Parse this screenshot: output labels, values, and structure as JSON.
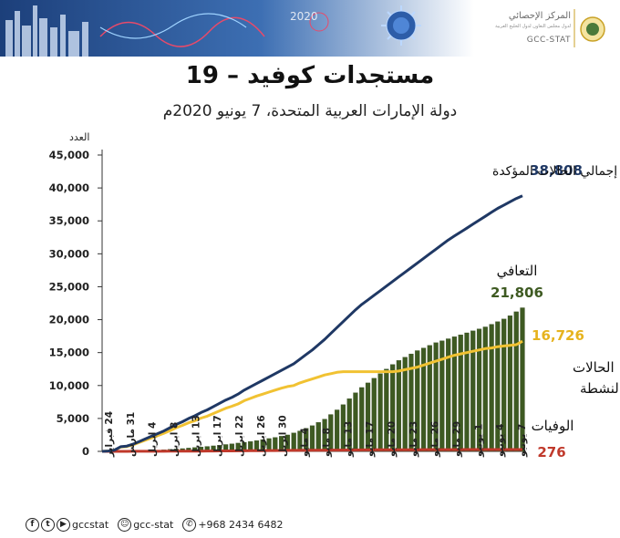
{
  "header": {
    "logo_arabic": "المركز الإحصائي",
    "logo_subtitle": "لدول مجلس التعاون لدول الخليج العربية",
    "logo_english": "GCC-STAT",
    "banner_digits": "2020"
  },
  "title": "مستجدات كوفيد – 19",
  "subtitle": "دولة الإمارات العربية المتحدة، 7 يونيو 2020م",
  "footer": {
    "handle": "gccstat",
    "snap": "gcc-stat",
    "phone": "+968 2434 6482"
  },
  "chart_data": {
    "type": "bar",
    "ylabel": "العدد",
    "ylim": [
      0,
      45000
    ],
    "yticks": [
      "45,000",
      "40,000",
      "35,000",
      "30,000",
      "25,000",
      "20,000",
      "15,000",
      "10,000",
      "5,000",
      "0"
    ],
    "xticks": [
      "24 فبراير",
      "31 مارس",
      "4 ابريل",
      "8 ابريل",
      "13 ابريل",
      "17 ابريل",
      "22 ابريل",
      "26 ابريل",
      "30 ابريل",
      "4 مايو",
      "8 مايو",
      "13 مايو",
      "17 مايو",
      "20 مايو",
      "23 مايو",
      "26 مايو",
      "29 مايو",
      "1 يونيو",
      "4 يونيو",
      "7 يونيو"
    ],
    "grid": false,
    "colors": {
      "confirmed": "#1f3864",
      "recovered": "#3e5a22",
      "active": "#f1c232",
      "deaths": "#c0392b"
    },
    "series": [
      {
        "name": "إجمالي الحالات المؤكدة",
        "label_value": "38,808",
        "values": [
          0,
          50,
          200,
          700,
          800,
          1100,
          1500,
          1900,
          2300,
          2700,
          3100,
          3600,
          4100,
          4500,
          5000,
          5400,
          5900,
          6300,
          6800,
          7300,
          7800,
          8200,
          8700,
          9300,
          9800,
          10300,
          10800,
          11300,
          11800,
          12300,
          12800,
          13300,
          14000,
          14700,
          15400,
          16200,
          17000,
          17900,
          18800,
          19700,
          20600,
          21500,
          22300,
          23000,
          23700,
          24400,
          25100,
          25800,
          26500,
          27200,
          27900,
          28600,
          29300,
          30000,
          30700,
          31400,
          32100,
          32700,
          33300,
          33900,
          34500,
          35100,
          35700,
          36300,
          36900,
          37400,
          37900,
          38400,
          38808
        ]
      },
      {
        "name": "التعافي",
        "label_value": "21,806",
        "values": [
          0,
          0,
          0,
          20,
          40,
          60,
          90,
          120,
          150,
          190,
          240,
          300,
          360,
          420,
          500,
          580,
          660,
          750,
          840,
          940,
          1040,
          1150,
          1260,
          1380,
          1500,
          1640,
          1790,
          1950,
          2120,
          2300,
          2500,
          2800,
          3100,
          3500,
          3900,
          4400,
          4900,
          5600,
          6300,
          7100,
          8000,
          8900,
          9700,
          10400,
          11100,
          11800,
          12500,
          13200,
          13800,
          14300,
          14800,
          15300,
          15700,
          16100,
          16500,
          16800,
          17100,
          17400,
          17700,
          18000,
          18300,
          18600,
          18900,
          19300,
          19700,
          20100,
          20600,
          21200,
          21806
        ]
      },
      {
        "name": "الحالات النشطة",
        "label_value": "16,726",
        "values": [
          0,
          50,
          200,
          650,
          730,
          1000,
          1360,
          1700,
          2050,
          2400,
          2750,
          3150,
          3600,
          3950,
          4350,
          4650,
          5050,
          5350,
          5750,
          6150,
          6550,
          6850,
          7200,
          7700,
          8050,
          8400,
          8700,
          9000,
          9300,
          9600,
          9850,
          10000,
          10400,
          10700,
          11000,
          11300,
          11600,
          11800,
          12000,
          12100,
          12100,
          12100,
          12100,
          12100,
          12100,
          12100,
          12100,
          12100,
          12200,
          12400,
          12600,
          12800,
          13100,
          13400,
          13700,
          14000,
          14300,
          14600,
          14800,
          15000,
          15200,
          15400,
          15600,
          15700,
          15900,
          16000,
          16100,
          16200,
          16726
        ]
      },
      {
        "name": "الوفيات",
        "label_value": "276",
        "values": [
          0,
          0,
          2,
          3,
          5,
          8,
          10,
          12,
          14,
          16,
          20,
          24,
          28,
          33,
          37,
          41,
          46,
          52,
          58,
          64,
          70,
          76,
          82,
          89,
          96,
          105,
          112,
          119,
          126,
          133,
          140,
          146,
          153,
          160,
          167,
          174,
          181,
          188,
          194,
          200,
          206,
          212,
          218,
          224,
          229,
          234,
          238,
          242,
          246,
          250,
          253,
          256,
          259,
          261,
          263,
          265,
          267,
          269,
          270,
          271,
          272,
          273,
          274,
          274,
          275,
          275,
          276,
          276,
          276
        ]
      }
    ]
  }
}
